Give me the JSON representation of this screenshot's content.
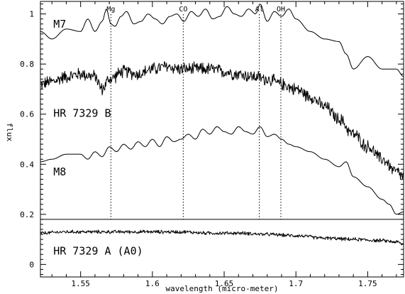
{
  "chart_data": {
    "type": "line",
    "title": "",
    "xlabel": "wavelength (micro-meter)",
    "ylabel": "flux",
    "xlim": [
      1.522,
      1.775
    ],
    "ylim": [
      -0.05,
      1.05
    ],
    "x_ticks": [
      1.55,
      1.6,
      1.65,
      1.7,
      1.75
    ],
    "x_tick_labels": [
      "1.55",
      "1.6",
      "1.65",
      "1.7",
      "1.75"
    ],
    "y_ticks": [
      0,
      0.2,
      0.4,
      0.6,
      0.8,
      1
    ],
    "y_tick_labels": [
      "0",
      "0.2",
      "0.4",
      "0.6",
      "0.8",
      "1"
    ],
    "separator_y": 0.18,
    "grid": false,
    "reference_lines": [
      {
        "label": "Mg",
        "x": 1.5711
      },
      {
        "label": "CO",
        "x": 1.6215
      },
      {
        "label": "Al",
        "x": 1.6745
      },
      {
        "label": "OH",
        "x": 1.6895
      }
    ],
    "series": [
      {
        "name": "M7",
        "style": "smooth",
        "x": [
          1.522,
          1.53,
          1.54,
          1.55,
          1.555,
          1.56,
          1.565,
          1.568,
          1.571,
          1.574,
          1.578,
          1.582,
          1.587,
          1.592,
          1.597,
          1.602,
          1.607,
          1.612,
          1.617,
          1.622,
          1.627,
          1.632,
          1.637,
          1.642,
          1.647,
          1.652,
          1.657,
          1.662,
          1.667,
          1.672,
          1.675,
          1.68,
          1.685,
          1.69,
          1.695,
          1.7,
          1.71,
          1.72,
          1.73,
          1.735,
          1.74,
          1.75,
          1.76,
          1.77,
          1.775
        ],
        "y": [
          0.93,
          0.9,
          0.94,
          0.93,
          0.98,
          0.93,
          0.97,
          1.02,
          0.96,
          0.95,
          0.99,
          1.01,
          0.96,
          0.97,
          1.0,
          0.98,
          0.96,
          0.99,
          1.0,
          0.97,
          1.01,
          0.99,
          1.02,
          0.98,
          0.99,
          1.03,
          1.0,
          0.99,
          1.02,
          1.0,
          1.04,
          0.97,
          1.01,
          0.99,
          1.02,
          0.98,
          0.93,
          0.9,
          0.89,
          0.84,
          0.78,
          0.83,
          0.78,
          0.78,
          0.75
        ]
      },
      {
        "name": "HR 7329 B",
        "style": "noisy",
        "x": [
          1.522,
          1.53,
          1.54,
          1.55,
          1.56,
          1.565,
          1.57,
          1.58,
          1.59,
          1.6,
          1.61,
          1.62,
          1.63,
          1.64,
          1.65,
          1.66,
          1.67,
          1.68,
          1.69,
          1.7,
          1.71,
          1.72,
          1.73,
          1.74,
          1.75,
          1.76,
          1.77,
          1.775
        ],
        "y": [
          0.72,
          0.73,
          0.75,
          0.76,
          0.75,
          0.7,
          0.74,
          0.77,
          0.76,
          0.78,
          0.79,
          0.78,
          0.78,
          0.78,
          0.77,
          0.76,
          0.75,
          0.74,
          0.72,
          0.7,
          0.67,
          0.63,
          0.58,
          0.52,
          0.47,
          0.42,
          0.37,
          0.35
        ]
      },
      {
        "name": "M8",
        "style": "smooth",
        "x": [
          1.522,
          1.53,
          1.54,
          1.55,
          1.555,
          1.56,
          1.565,
          1.57,
          1.575,
          1.58,
          1.585,
          1.59,
          1.595,
          1.6,
          1.605,
          1.61,
          1.615,
          1.62,
          1.625,
          1.63,
          1.635,
          1.64,
          1.645,
          1.65,
          1.655,
          1.66,
          1.665,
          1.67,
          1.675,
          1.68,
          1.685,
          1.69,
          1.695,
          1.7,
          1.71,
          1.72,
          1.73,
          1.735,
          1.74,
          1.75,
          1.76,
          1.765,
          1.77,
          1.775
        ],
        "y": [
          0.41,
          0.42,
          0.44,
          0.44,
          0.42,
          0.45,
          0.43,
          0.47,
          0.45,
          0.48,
          0.46,
          0.49,
          0.47,
          0.5,
          0.47,
          0.51,
          0.49,
          0.5,
          0.52,
          0.5,
          0.54,
          0.52,
          0.55,
          0.53,
          0.52,
          0.55,
          0.53,
          0.52,
          0.55,
          0.51,
          0.52,
          0.5,
          0.48,
          0.47,
          0.45,
          0.42,
          0.39,
          0.41,
          0.35,
          0.31,
          0.26,
          0.24,
          0.2,
          0.21
        ]
      },
      {
        "name": "HR 7329 A (A0)",
        "style": "noisy",
        "x": [
          1.522,
          1.54,
          1.56,
          1.58,
          1.6,
          1.62,
          1.64,
          1.66,
          1.68,
          1.7,
          1.72,
          1.74,
          1.76,
          1.77,
          1.775
        ],
        "y": [
          0.125,
          0.13,
          0.13,
          0.13,
          0.13,
          0.13,
          0.125,
          0.125,
          0.12,
          0.115,
          0.105,
          0.1,
          0.095,
          0.09,
          0.08
        ]
      }
    ],
    "annotations": [
      {
        "text": "M7",
        "x": 1.531,
        "y": 0.945
      },
      {
        "text": "HR 7329 B",
        "x": 1.531,
        "y": 0.59
      },
      {
        "text": "M8",
        "x": 1.531,
        "y": 0.355
      },
      {
        "text": "HR 7329 A (A0)",
        "x": 1.531,
        "y": 0.04
      }
    ]
  }
}
